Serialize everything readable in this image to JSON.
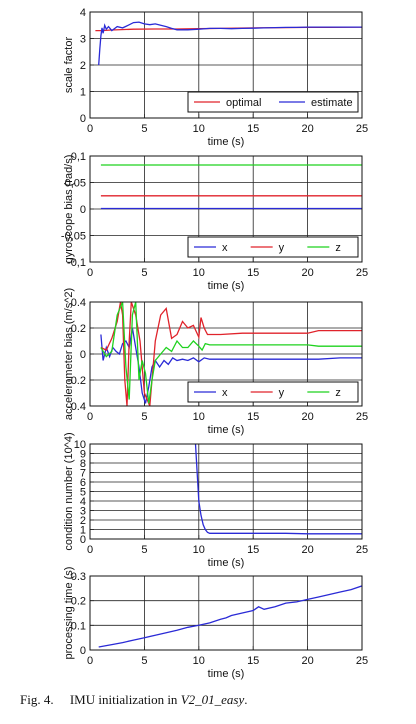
{
  "caption": {
    "label": "Fig. 4.",
    "text": "IMU initialization in",
    "dataset": "V2_01_easy",
    "end": "."
  },
  "chart_data": [
    {
      "type": "line",
      "ylabel": "scale factor",
      "xlabel": "time (s)",
      "xlim": [
        0,
        25
      ],
      "ylim": [
        0,
        4
      ],
      "xticks": [
        "0",
        "5",
        "10",
        "15",
        "20",
        "25"
      ],
      "yticks": [
        "0",
        "1",
        "2",
        "3",
        "4"
      ],
      "grid": true,
      "legend": "bottom-right",
      "series": [
        {
          "name": "optimal",
          "color": "#e0232b",
          "x": [
            0.5,
            1,
            2,
            4,
            6,
            8,
            10,
            12,
            15,
            18,
            20,
            22,
            25
          ],
          "y": [
            3.3,
            3.3,
            3.32,
            3.35,
            3.36,
            3.36,
            3.37,
            3.38,
            3.4,
            3.41,
            3.42,
            3.42,
            3.43
          ]
        },
        {
          "name": "estimate",
          "color": "#2a2ad6",
          "x": [
            0.8,
            0.9,
            1.0,
            1.1,
            1.2,
            1.35,
            1.5,
            1.7,
            2.0,
            2.5,
            3.0,
            3.5,
            4.0,
            4.5,
            5.0,
            5.5,
            6.0,
            6.5,
            7.0,
            7.5,
            8.0,
            9.0,
            10.0,
            11.0,
            12.0,
            13.0,
            14.0,
            15.0,
            16.0,
            17.0,
            18.0,
            19.0,
            20.0,
            21.0,
            22.0,
            23.0,
            24.0,
            25.0
          ],
          "y": [
            2.0,
            2.6,
            3.1,
            3.4,
            3.2,
            3.5,
            3.35,
            3.45,
            3.3,
            3.45,
            3.4,
            3.5,
            3.6,
            3.62,
            3.55,
            3.52,
            3.55,
            3.5,
            3.45,
            3.38,
            3.33,
            3.33,
            3.35,
            3.38,
            3.38,
            3.37,
            3.38,
            3.39,
            3.4,
            3.41,
            3.42,
            3.42,
            3.43,
            3.43,
            3.43,
            3.43,
            3.43,
            3.43
          ]
        }
      ]
    },
    {
      "type": "line",
      "ylabel": "gyroscope bias (rad/s)",
      "xlabel": "time (s)",
      "xlim": [
        0,
        25
      ],
      "ylim": [
        -0.1,
        0.1
      ],
      "xticks": [
        "0",
        "5",
        "10",
        "15",
        "20",
        "25"
      ],
      "yticks": [
        "-0,1",
        "-0,05",
        "0",
        "0,05",
        "0,1"
      ],
      "grid": true,
      "legend": "bottom-right",
      "series": [
        {
          "name": "x",
          "color": "#2a2ad6",
          "x": [
            1,
            5,
            10,
            15,
            20,
            25
          ],
          "y": [
            0.001,
            0.001,
            0.001,
            0.001,
            0.001,
            0.001
          ]
        },
        {
          "name": "y",
          "color": "#e0232b",
          "x": [
            1,
            5,
            10,
            15,
            20,
            25
          ],
          "y": [
            0.025,
            0.025,
            0.025,
            0.025,
            0.025,
            0.025
          ]
        },
        {
          "name": "z",
          "color": "#1fd21f",
          "x": [
            1,
            5,
            10,
            15,
            20,
            25
          ],
          "y": [
            0.083,
            0.083,
            0.083,
            0.083,
            0.083,
            0.083
          ]
        }
      ]
    },
    {
      "type": "line",
      "ylabel": "accelerometer bias (m/s^2)",
      "xlabel": "time (s)",
      "xlim": [
        0,
        25
      ],
      "ylim": [
        -0.4,
        0.4
      ],
      "xticks": [
        "0",
        "5",
        "10",
        "15",
        "20",
        "25"
      ],
      "yticks": [
        "-0.4",
        "-0.2",
        "0",
        "0.2",
        "0.4"
      ],
      "grid": true,
      "legend": "bottom-right",
      "series": [
        {
          "name": "x",
          "color": "#2a2ad6",
          "x": [
            1.0,
            1.2,
            1.5,
            1.8,
            2.1,
            2.4,
            2.7,
            3.0,
            3.3,
            3.6,
            3.9,
            4.2,
            4.5,
            4.8,
            5.1,
            5.4,
            5.7,
            6.0,
            6.4,
            6.8,
            7.2,
            7.6,
            8.0,
            8.5,
            9.0,
            9.5,
            10.0,
            10.5,
            11.0,
            12.0,
            13.0,
            15.0,
            17.0,
            19.0,
            21.0,
            23.0,
            25.0
          ],
          "y": [
            0.15,
            -0.05,
            0.05,
            -0.02,
            0.05,
            0.02,
            0.0,
            0.08,
            0.1,
            0.05,
            0.2,
            0.05,
            -0.1,
            -0.3,
            -0.38,
            -0.25,
            -0.1,
            -0.05,
            -0.1,
            -0.05,
            -0.08,
            -0.03,
            -0.05,
            -0.04,
            -0.05,
            -0.03,
            -0.06,
            -0.03,
            -0.04,
            -0.04,
            -0.04,
            -0.04,
            -0.04,
            -0.04,
            -0.04,
            -0.03,
            -0.03
          ]
        },
        {
          "name": "y",
          "color": "#e0232b",
          "x": [
            1.0,
            1.5,
            2.0,
            2.5,
            2.8,
            3.0,
            3.2,
            3.4,
            3.6,
            3.8,
            4.0,
            4.2,
            4.6,
            5.0,
            5.5,
            6.0,
            6.5,
            7.0,
            7.5,
            8.0,
            8.5,
            9.0,
            9.5,
            10.0,
            10.2,
            10.5,
            10.8,
            11.0,
            12.0,
            14.0,
            16.0,
            18.0,
            20.0,
            21.0,
            23.0,
            25.0
          ],
          "y": [
            0.05,
            0.03,
            0.12,
            0.25,
            0.4,
            0.3,
            -0.2,
            -0.4,
            0.1,
            0.4,
            0.35,
            0.3,
            0.1,
            -0.3,
            -0.4,
            0.1,
            0.3,
            0.35,
            0.12,
            0.15,
            0.25,
            0.2,
            0.22,
            0.13,
            0.28,
            0.2,
            0.15,
            0.15,
            0.15,
            0.16,
            0.16,
            0.16,
            0.16,
            0.18,
            0.18,
            0.18
          ]
        },
        {
          "name": "z",
          "color": "#1fd21f",
          "x": [
            1.0,
            1.5,
            2.0,
            2.5,
            3.0,
            3.3,
            3.6,
            3.9,
            4.2,
            4.5,
            4.8,
            5.1,
            5.4,
            5.7,
            6.0,
            6.5,
            7.0,
            7.5,
            8.0,
            8.5,
            9.0,
            9.5,
            10.0,
            10.3,
            10.6,
            11.0,
            12.0,
            14.0,
            16.0,
            18.0,
            20.0,
            21.0,
            23.0,
            25.0
          ],
          "y": [
            0.05,
            -0.02,
            0.02,
            0.3,
            0.4,
            -0.1,
            -0.35,
            0.3,
            0.4,
            -0.2,
            -0.05,
            -0.15,
            -0.38,
            -0.2,
            -0.05,
            0.0,
            0.05,
            0.02,
            0.1,
            0.05,
            0.05,
            0.1,
            0.06,
            0.03,
            0.08,
            0.07,
            0.07,
            0.07,
            0.07,
            0.07,
            0.07,
            0.06,
            0.06,
            0.06
          ]
        }
      ]
    },
    {
      "type": "line",
      "ylabel": "condition number (10^4)",
      "xlabel": "time (s)",
      "xlim": [
        0,
        25
      ],
      "ylim": [
        0,
        10
      ],
      "xticks": [
        "0",
        "5",
        "10",
        "15",
        "20",
        "25"
      ],
      "yticks": [
        "0",
        "1",
        "2",
        "3",
        "4",
        "5",
        "6",
        "7",
        "8",
        "9",
        "10"
      ],
      "grid": true,
      "series": [
        {
          "color": "#2a2ad6",
          "x": [
            9.7,
            9.9,
            10.0,
            10.2,
            10.4,
            10.6,
            10.8,
            11.0,
            12.0,
            14.0,
            16.0,
            18.0,
            20.0,
            22.0,
            25.0
          ],
          "y": [
            10.0,
            6.0,
            4.0,
            2.5,
            1.5,
            1.0,
            0.7,
            0.6,
            0.6,
            0.6,
            0.6,
            0.6,
            0.55,
            0.55,
            0.55
          ]
        }
      ]
    },
    {
      "type": "line",
      "ylabel": "processing time (s)",
      "xlabel": "time (s)",
      "xlim": [
        0,
        25
      ],
      "ylim": [
        0,
        0.3
      ],
      "xticks": [
        "0",
        "5",
        "10",
        "15",
        "20",
        "25"
      ],
      "yticks": [
        "0",
        "0.1",
        "0.2",
        "0.3"
      ],
      "grid": true,
      "series": [
        {
          "color": "#2a2ad6",
          "x": [
            0.8,
            2,
            3,
            4,
            5,
            6,
            7,
            8,
            9,
            10,
            11,
            12,
            12.5,
            13,
            14,
            15,
            15.5,
            16,
            17,
            18,
            19,
            20,
            21,
            22,
            23,
            24,
            25
          ],
          "y": [
            0.012,
            0.022,
            0.03,
            0.04,
            0.05,
            0.06,
            0.07,
            0.08,
            0.092,
            0.1,
            0.11,
            0.125,
            0.13,
            0.14,
            0.15,
            0.16,
            0.175,
            0.165,
            0.175,
            0.19,
            0.195,
            0.205,
            0.215,
            0.225,
            0.235,
            0.245,
            0.26
          ]
        }
      ]
    }
  ]
}
